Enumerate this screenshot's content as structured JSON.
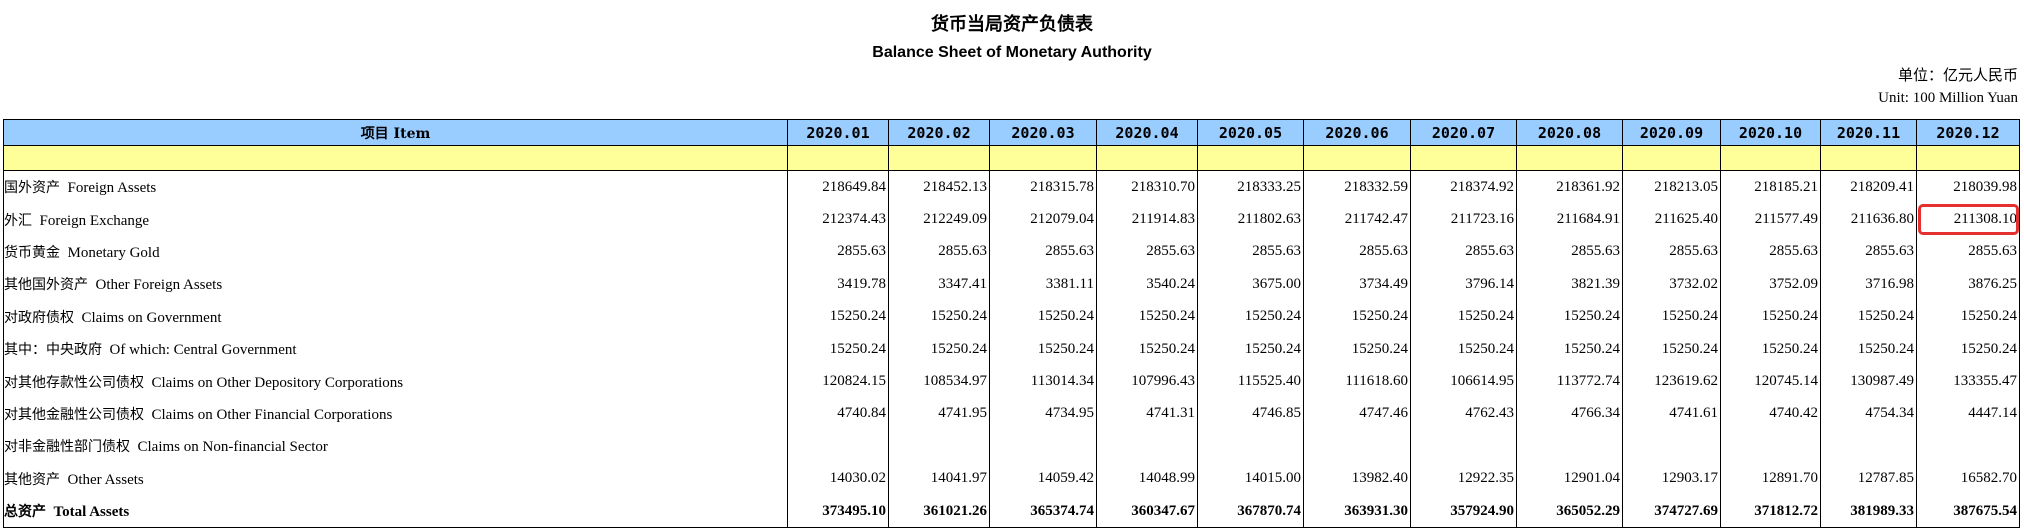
{
  "title_zh": "货币当局资产负债表",
  "title_en": "Balance Sheet of  Monetary Authority",
  "unit_zh": "单位：亿元人民币",
  "unit_en": "Unit: 100 Million Yuan",
  "header": {
    "item_label": "项目 Item",
    "periods": [
      "2020.01",
      "2020.02",
      "2020.03",
      "2020.04",
      "2020.05",
      "2020.06",
      "2020.07",
      "2020.08",
      "2020.09",
      "2020.10",
      "2020.11",
      "2020.12"
    ]
  },
  "rows": [
    {
      "zh": "国外资产",
      "en": "Foreign Assets",
      "values": [
        "218649.84",
        "218452.13",
        "218315.78",
        "218310.70",
        "218333.25",
        "218332.59",
        "218374.92",
        "218361.92",
        "218213.05",
        "218185.21",
        "218209.41",
        "218039.98"
      ]
    },
    {
      "zh": "外汇",
      "en": "Foreign Exchange",
      "values": [
        "212374.43",
        "212249.09",
        "212079.04",
        "211914.83",
        "211802.63",
        "211742.47",
        "211723.16",
        "211684.91",
        "211625.40",
        "211577.49",
        "211636.80",
        "211308.10"
      ]
    },
    {
      "zh": "货币黄金",
      "en": "Monetary Gold",
      "values": [
        "2855.63",
        "2855.63",
        "2855.63",
        "2855.63",
        "2855.63",
        "2855.63",
        "2855.63",
        "2855.63",
        "2855.63",
        "2855.63",
        "2855.63",
        "2855.63"
      ]
    },
    {
      "zh": "其他国外资产",
      "en": "Other Foreign Assets",
      "values": [
        "3419.78",
        "3347.41",
        "3381.11",
        "3540.24",
        "3675.00",
        "3734.49",
        "3796.14",
        "3821.39",
        "3732.02",
        "3752.09",
        "3716.98",
        "3876.25"
      ]
    },
    {
      "zh": "对政府债权",
      "en": "Claims on Government",
      "values": [
        "15250.24",
        "15250.24",
        "15250.24",
        "15250.24",
        "15250.24",
        "15250.24",
        "15250.24",
        "15250.24",
        "15250.24",
        "15250.24",
        "15250.24",
        "15250.24"
      ]
    },
    {
      "zh": "其中：中央政府",
      "en": "Of which: Central Government",
      "values": [
        "15250.24",
        "15250.24",
        "15250.24",
        "15250.24",
        "15250.24",
        "15250.24",
        "15250.24",
        "15250.24",
        "15250.24",
        "15250.24",
        "15250.24",
        "15250.24"
      ]
    },
    {
      "zh": "对其他存款性公司债权",
      "en": "Claims on Other Depository Corporations",
      "values": [
        "120824.15",
        "108534.97",
        "113014.34",
        "107996.43",
        "115525.40",
        "111618.60",
        "106614.95",
        "113772.74",
        "123619.62",
        "120745.14",
        "130987.49",
        "133355.47"
      ]
    },
    {
      "zh": "对其他金融性公司债权",
      "en": "Claims on Other Financial Corporations",
      "values": [
        "4740.84",
        "4741.95",
        "4734.95",
        "4741.31",
        "4746.85",
        "4747.46",
        "4762.43",
        "4766.34",
        "4741.61",
        "4740.42",
        "4754.34",
        "4447.14"
      ]
    },
    {
      "zh": "对非金融性部门债权",
      "en": "Claims on Non-financial Sector",
      "values": [
        "",
        "",
        "",
        "",
        "",
        "",
        "",
        "",
        "",
        "",
        "",
        ""
      ]
    },
    {
      "zh": "其他资产",
      "en": "Other Assets",
      "values": [
        "14030.02",
        "14041.97",
        "14059.42",
        "14048.99",
        "14015.00",
        "13982.40",
        "12922.35",
        "12901.04",
        "12903.17",
        "12891.70",
        "12787.85",
        "16582.70"
      ]
    },
    {
      "zh": "总资产",
      "en": "Total Assets",
      "values": [
        "373495.10",
        "361021.26",
        "365374.74",
        "360347.67",
        "367870.74",
        "363931.30",
        "357924.90",
        "365052.29",
        "374727.69",
        "371812.72",
        "381989.33",
        "387675.54"
      ]
    }
  ],
  "highlight_color": "#e53030",
  "header_bg": "#99ccff",
  "spacer_bg": "#ffff99"
}
